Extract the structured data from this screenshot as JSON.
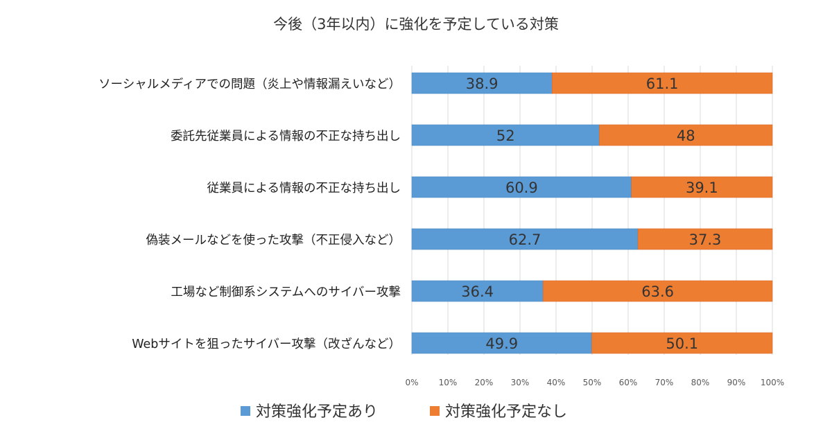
{
  "chart_data": {
    "type": "bar",
    "stacked": true,
    "orientation": "horizontal",
    "title": "今後（3年以内）に強化を予定している対策",
    "categories": [
      "ソーシャルメディアでの問題（炎上や情報漏えいなど）",
      "委託先従業員による情報の不正な持ち出し",
      "従業員による情報の不正な持ち出し",
      "偽装メールなどを使った攻撃（不正侵入など）",
      "工場など制御系システムへのサイバー攻撃",
      "Webサイトを狙ったサイバー攻撃（改ざんなど）"
    ],
    "series": [
      {
        "name": "対策強化予定あり",
        "color": "#5b9bd5",
        "values": [
          38.9,
          52,
          60.9,
          62.7,
          36.4,
          49.9
        ]
      },
      {
        "name": "対策強化予定なし",
        "color": "#ed7d31",
        "values": [
          61.1,
          48,
          39.1,
          37.3,
          63.6,
          50.1
        ]
      }
    ],
    "xlim": [
      0,
      100
    ],
    "xticks": [
      "0%",
      "10%",
      "20%",
      "30%",
      "40%",
      "50%",
      "60%",
      "70%",
      "80%",
      "90%",
      "100%"
    ],
    "xlabel": "",
    "ylabel": "",
    "grid": true,
    "legend": "bottom"
  }
}
